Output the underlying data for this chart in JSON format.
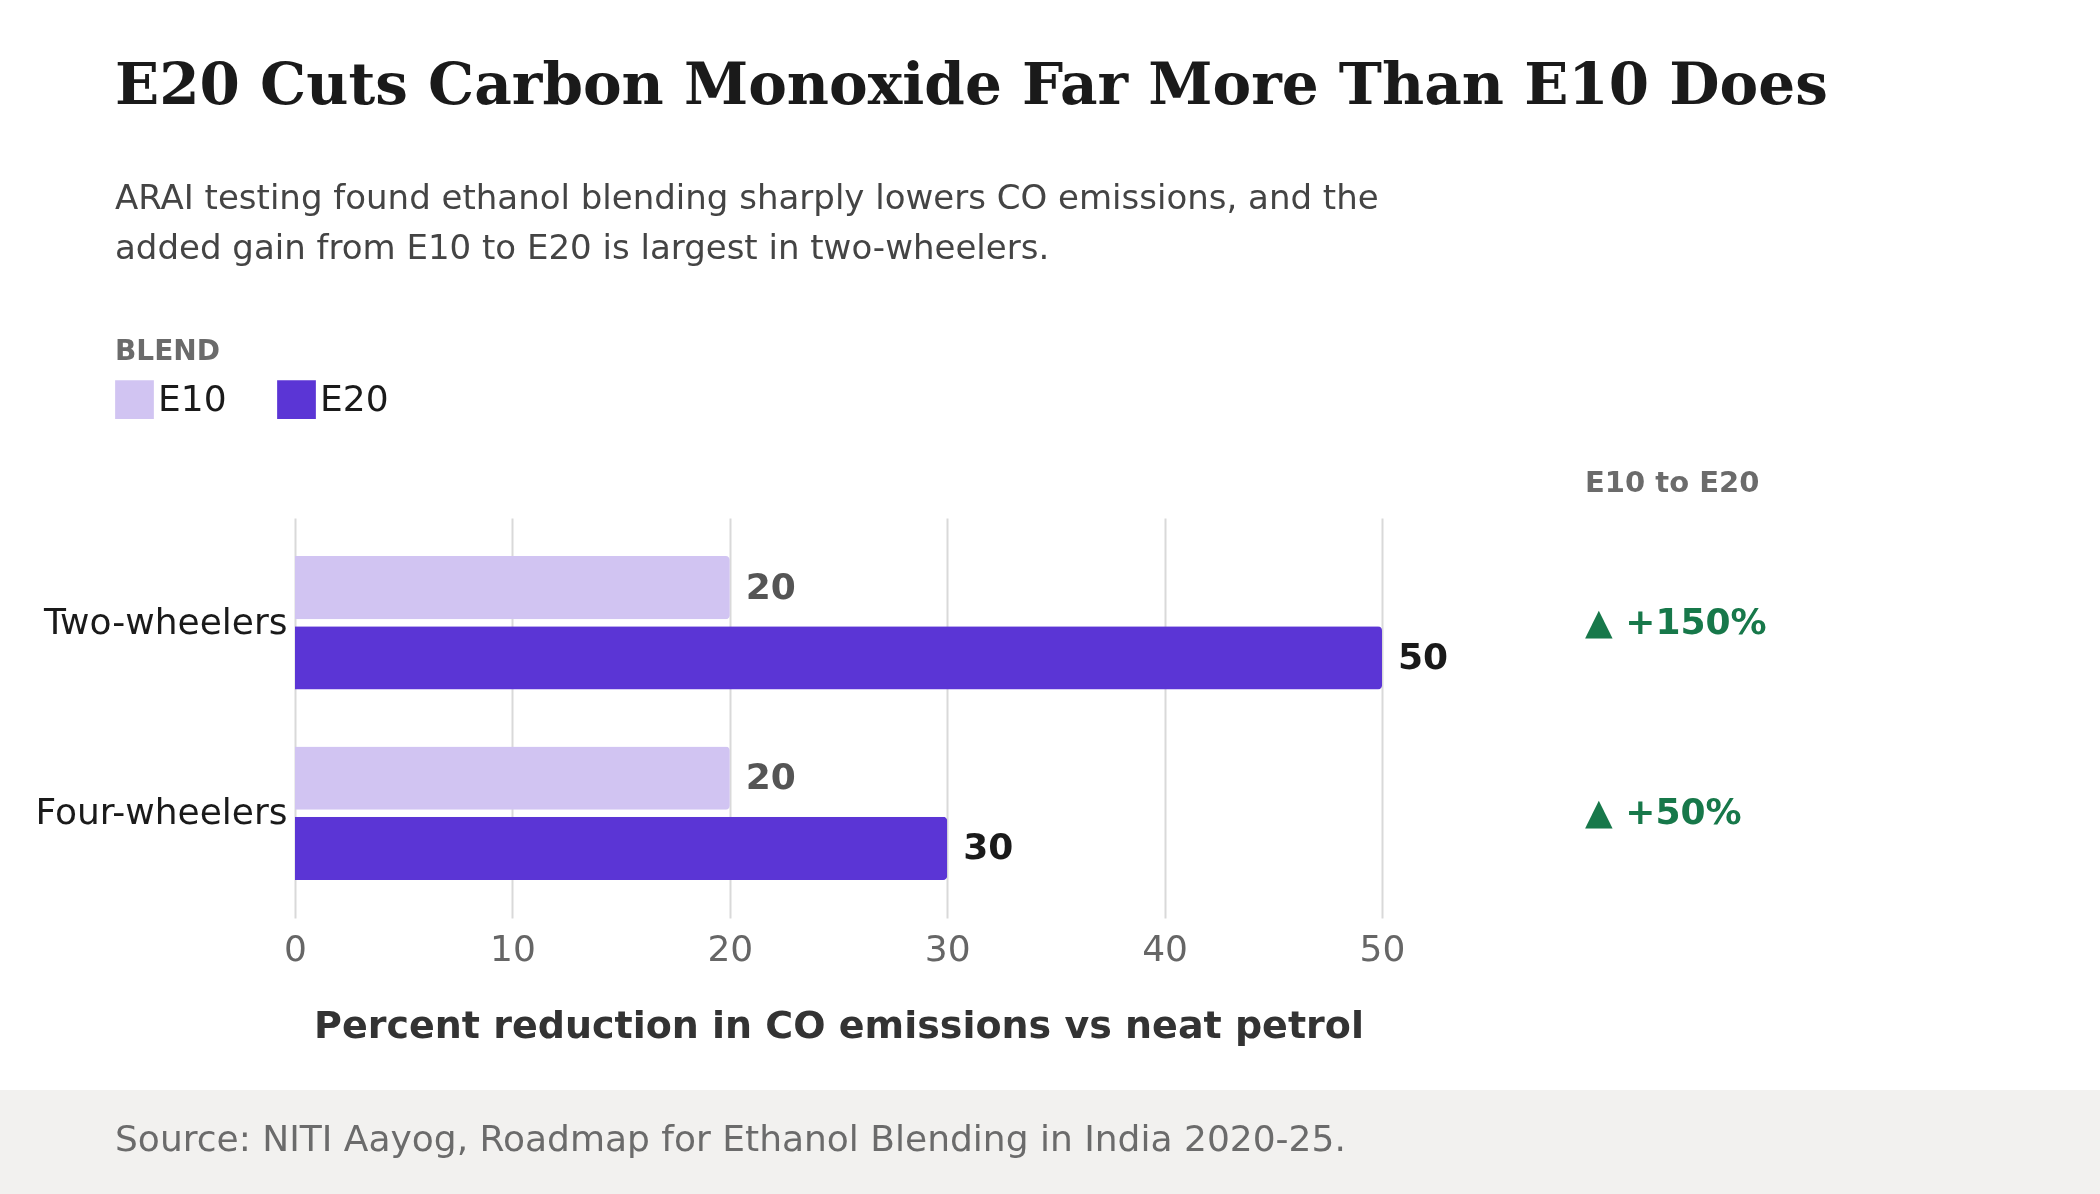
{
  "chart_data": {
    "type": "bar",
    "orientation": "horizontal",
    "title": "E20 Cuts Carbon Monoxide Far More Than E10 Does",
    "subtitle": "ARAI testing found ethanol blending sharply lowers CO emissions, and the added gain from E10 to E20 is largest in two-wheelers.",
    "xlabel": "Percent reduction in CO emissions vs neat petrol",
    "legend_title": "BLEND",
    "legend": "top left",
    "categories": [
      "Two-wheelers",
      "Four-wheelers"
    ],
    "series": [
      {
        "name": "E10",
        "color": "#d1c4f2",
        "values": [
          20,
          20
        ]
      },
      {
        "name": "E20",
        "color": "#5b35d5",
        "values": [
          50,
          30
        ]
      }
    ],
    "xlim": [
      0,
      50
    ],
    "xticks": [
      0,
      10,
      20,
      30,
      40,
      50
    ],
    "grid": "x",
    "data_labels": true,
    "annotations": [
      "E10 to E20",
      "▲ +150%",
      "▲ +50%",
      "Source: NITI Aayog, Roadmap for Ethanol Blending in India 2020-25."
    ]
  }
}
